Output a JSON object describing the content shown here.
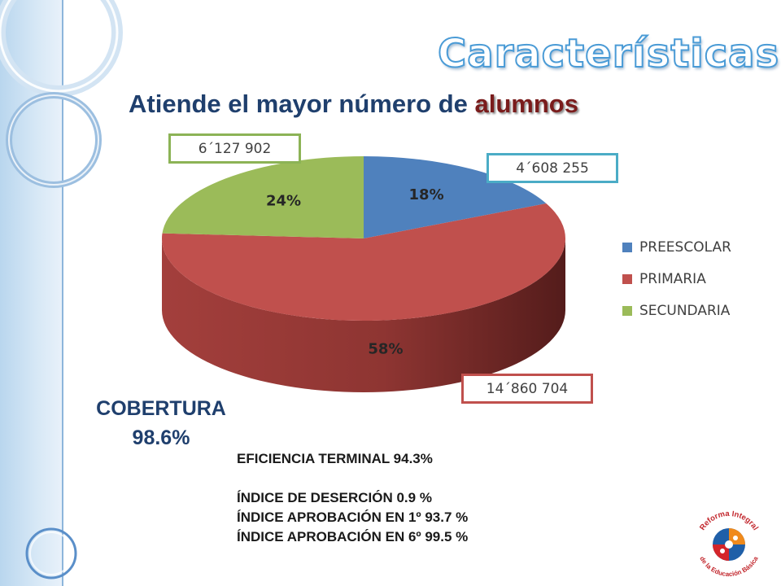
{
  "title": "Características",
  "subtitle": {
    "text": "Atiende el mayor número de ",
    "highlight": "alumnos"
  },
  "chart_data": {
    "type": "pie",
    "style": "3d",
    "categories": [
      "PREESCOLAR",
      "PRIMARIA",
      "SECUNDARIA"
    ],
    "values": [
      18,
      58,
      24
    ],
    "value_labels": [
      "18%",
      "58%",
      "24%"
    ],
    "student_counts": [
      "4´608 255",
      "14´860 704",
      "6´127 902"
    ],
    "colors": [
      "#4f81bd",
      "#c0504d",
      "#9bbb59"
    ],
    "legend_position": "right"
  },
  "cobertura": {
    "label": "COBERTURA",
    "value": "98.6%"
  },
  "stats": [
    "EFICIENCIA TERMINAL 94.3%",
    "ÍNDICE DE DESERCIÓN  0.9 %",
    "ÍNDICE APROBACIÓN EN 1º 93.7 %",
    "ÍNDICE APROBACIÓN EN 6º 99.5 %"
  ],
  "logo": {
    "line1": "Reforma Integral",
    "line2": "de la Educación Básica"
  }
}
